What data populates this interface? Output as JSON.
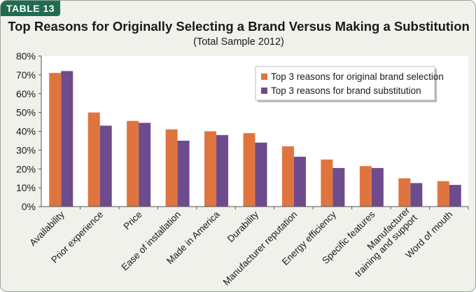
{
  "tag": "TABLE 13",
  "title": "Top Reasons for Originally Selecting a Brand Versus Making a Substitution",
  "subtitle": "(Total Sample 2012)",
  "colors": {
    "original": "#e0743e",
    "substitution": "#6e4b8c",
    "tag_bg": "#1f6c50",
    "frame_bg": "#eff1ea",
    "plot_bg": "#ffffff"
  },
  "chart_data": {
    "type": "bar",
    "categories": [
      "Availability",
      "Prior experience",
      "Price",
      "Ease of installation",
      "Made in America",
      "Durability",
      "Manufacturer reputation",
      "Energy efficiency",
      "Specific features",
      "Manufacturer training and support",
      "Word of mouth"
    ],
    "series": [
      {
        "name": "Top 3 reasons for original brand selection",
        "values": [
          71,
          50,
          45.5,
          41,
          40,
          39,
          32,
          25,
          21.5,
          15,
          13.5
        ]
      },
      {
        "name": "Top 3 reasons for brand substitution",
        "values": [
          72,
          43,
          44.5,
          35,
          38,
          34,
          26.5,
          20.5,
          20.5,
          12.5,
          11.5
        ]
      }
    ],
    "y_ticks": [
      "0%",
      "10%",
      "20%",
      "30%",
      "40%",
      "50%",
      "60%",
      "70%",
      "80%"
    ],
    "ylim": [
      0,
      80
    ],
    "legend_position": "top-right",
    "grid": false
  }
}
